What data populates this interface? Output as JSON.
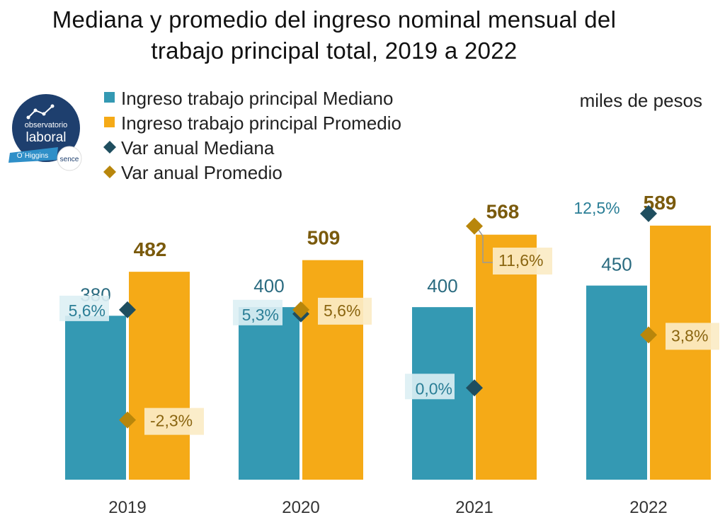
{
  "title_line1": "Mediana  y  promedio  del  ingreso  nominal mensual del",
  "title_line2": "trabajo principal total, 2019 a 2022",
  "units": "miles de pesos",
  "logo": {
    "line1": "observatorio",
    "line2": "laboral",
    "region": "O´Higgins",
    "brand": "sence"
  },
  "legend": [
    {
      "label": "Ingreso trabajo principal Mediano",
      "symbol": "square",
      "color": "#3499B3"
    },
    {
      "label": "Ingreso trabajo principal Promedio",
      "symbol": "square",
      "color": "#F5AA17"
    },
    {
      "label": "Var anual Mediana",
      "symbol": "diamond",
      "color": "#1F4E5F"
    },
    {
      "label": "Var anual Promedio",
      "symbol": "diamond",
      "color": "#B8860B"
    }
  ],
  "colors": {
    "mediano_bar": "#3499B3",
    "promedio_bar": "#F5AA17",
    "var_mediana": "#1F4E5F",
    "var_promedio": "#B8860B",
    "mediano_label_text": "#2A6B80",
    "promedio_label_text": "#7A5A0C",
    "var_mediana_text": "#2A7E96",
    "var_promedio_text": "#8A6510",
    "label_box_mediana": "#DDEFF4",
    "label_box_promedio": "#FBEBC6"
  },
  "chart_data": {
    "type": "bar",
    "categories": [
      "2019",
      "2020",
      "2021",
      "2022"
    ],
    "series": [
      {
        "name": "Ingreso trabajo principal Mediano",
        "values": [
          380,
          400,
          400,
          450
        ],
        "labels": [
          "380",
          "400",
          "400",
          "450"
        ]
      },
      {
        "name": "Ingreso trabajo principal Promedio",
        "values": [
          482,
          509,
          568,
          589
        ],
        "labels": [
          "482",
          "509",
          "568",
          "589"
        ]
      }
    ],
    "secondary_series": [
      {
        "name": "Var anual Mediana",
        "type": "scatter",
        "values": [
          5.6,
          5.3,
          0.0,
          12.5
        ],
        "labels": [
          "5,6%",
          "5,3%",
          "0,0%",
          "12,5%"
        ]
      },
      {
        "name": "Var anual Promedio",
        "type": "scatter",
        "values": [
          -2.3,
          5.6,
          11.6,
          3.8
        ],
        "labels": [
          "-2,3%",
          "5,6%",
          "11,6%",
          "3,8%"
        ]
      }
    ],
    "ylim": [
      0,
      620
    ],
    "secondary_ylim": [
      -4.5,
      13
    ],
    "grid": false,
    "legend_position": "top-left"
  }
}
